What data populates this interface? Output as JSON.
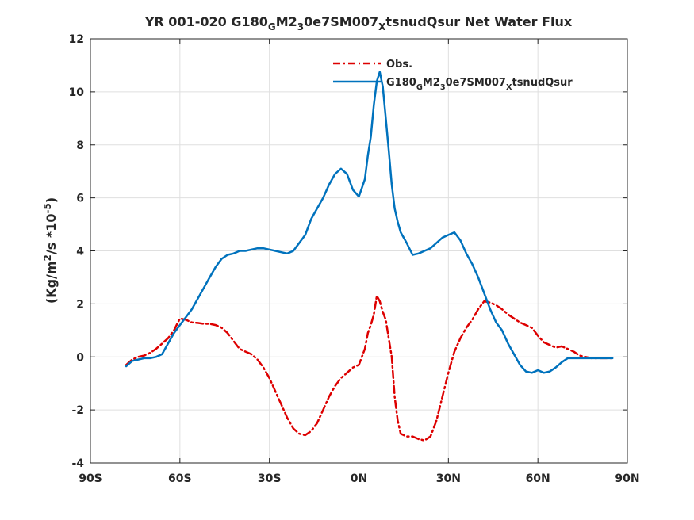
{
  "chart_data": {
    "type": "line",
    "title": {
      "parts": [
        {
          "text": "YR 001-020 G180",
          "sub": false
        },
        {
          "text": "G",
          "sub": true
        },
        {
          "text": "M2",
          "sub": false
        },
        {
          "text": "3",
          "sub": true
        },
        {
          "text": "0e7SM007",
          "sub": false
        },
        {
          "text": "X",
          "sub": true
        },
        {
          "text": "tsnudQsur  Net Water Flux",
          "sub": false
        }
      ]
    },
    "ylabel": {
      "parts": [
        {
          "text": "(Kg/m",
          "sup": false
        },
        {
          "text": "2",
          "sup": true
        },
        {
          "text": "/s *10",
          "sup": false
        },
        {
          "text": "-5",
          "sup": true
        },
        {
          "text": ")",
          "sup": false
        }
      ]
    },
    "xlim": [
      -90,
      90
    ],
    "ylim": [
      -4,
      12
    ],
    "grid": true,
    "legend_position": "top-right",
    "x_ticks": [
      {
        "value": -90,
        "label": "90S"
      },
      {
        "value": -60,
        "label": "60S"
      },
      {
        "value": -30,
        "label": "30S"
      },
      {
        "value": 0,
        "label": "0N"
      },
      {
        "value": 30,
        "label": "30N"
      },
      {
        "value": 60,
        "label": "60N"
      },
      {
        "value": 90,
        "label": "90N"
      }
    ],
    "y_ticks": [
      {
        "value": -4,
        "label": "-4"
      },
      {
        "value": -2,
        "label": "-2"
      },
      {
        "value": 0,
        "label": "0"
      },
      {
        "value": 2,
        "label": "2"
      },
      {
        "value": 4,
        "label": "4"
      },
      {
        "value": 6,
        "label": "6"
      },
      {
        "value": 8,
        "label": "8"
      },
      {
        "value": 10,
        "label": "10"
      },
      {
        "value": 12,
        "label": "12"
      }
    ],
    "series": [
      {
        "name": "Obs.",
        "color": "#dd0000",
        "style": "dashed",
        "x": [
          -78,
          -76,
          -74,
          -72,
          -70,
          -68,
          -66,
          -64,
          -62,
          -60,
          -58,
          -56,
          -54,
          -52,
          -50,
          -48,
          -46,
          -44,
          -42,
          -40,
          -38,
          -36,
          -34,
          -32,
          -30,
          -28,
          -26,
          -24,
          -22,
          -20,
          -18,
          -16,
          -14,
          -12,
          -10,
          -8,
          -6,
          -4,
          -2,
          0,
          2,
          3,
          4,
          5,
          6,
          7,
          8,
          9,
          10,
          11,
          12,
          13,
          14,
          16,
          18,
          20,
          22,
          24,
          26,
          28,
          30,
          32,
          34,
          36,
          38,
          40,
          42,
          44,
          46,
          48,
          50,
          52,
          54,
          56,
          58,
          60,
          62,
          64,
          66,
          68,
          70,
          72,
          74,
          76,
          78,
          80,
          82,
          84,
          85
        ],
        "y": [
          -0.3,
          -0.1,
          0.0,
          0.05,
          0.15,
          0.3,
          0.5,
          0.7,
          1.0,
          1.45,
          1.4,
          1.3,
          1.28,
          1.25,
          1.25,
          1.2,
          1.1,
          0.9,
          0.6,
          0.3,
          0.2,
          0.1,
          -0.1,
          -0.4,
          -0.8,
          -1.3,
          -1.8,
          -2.3,
          -2.7,
          -2.9,
          -2.95,
          -2.8,
          -2.5,
          -2.0,
          -1.5,
          -1.1,
          -0.8,
          -0.6,
          -0.4,
          -0.3,
          0.3,
          0.9,
          1.2,
          1.6,
          2.3,
          2.1,
          1.7,
          1.4,
          0.7,
          0.0,
          -1.5,
          -2.4,
          -2.9,
          -3.0,
          -3.0,
          -3.1,
          -3.15,
          -3.0,
          -2.4,
          -1.5,
          -0.6,
          0.2,
          0.7,
          1.1,
          1.4,
          1.8,
          2.1,
          2.05,
          1.95,
          1.8,
          1.6,
          1.45,
          1.3,
          1.2,
          1.1,
          0.8,
          0.55,
          0.45,
          0.35,
          0.4,
          0.3,
          0.2,
          0.05,
          0.0,
          -0.05,
          -0.05,
          -0.05,
          -0.05,
          -0.05
        ]
      },
      {
        "name": "G180_GM2_30e7SM007_Xtsnudqsur",
        "color": "#0072bd",
        "style": "solid",
        "x": [
          -78,
          -76,
          -74,
          -72,
          -70,
          -68,
          -66,
          -64,
          -62,
          -60,
          -58,
          -56,
          -54,
          -52,
          -50,
          -48,
          -46,
          -44,
          -42,
          -40,
          -38,
          -36,
          -34,
          -32,
          -30,
          -28,
          -26,
          -24,
          -22,
          -20,
          -18,
          -16,
          -14,
          -12,
          -10,
          -8,
          -6,
          -4,
          -2,
          0,
          2,
          3,
          4,
          5,
          6,
          7,
          8,
          9,
          10,
          11,
          12,
          13,
          14,
          16,
          18,
          20,
          22,
          24,
          26,
          28,
          30,
          32,
          34,
          36,
          38,
          40,
          42,
          44,
          46,
          48,
          50,
          52,
          54,
          56,
          58,
          60,
          62,
          64,
          66,
          68,
          70,
          72,
          74,
          76,
          78,
          80,
          82,
          84,
          85
        ],
        "y": [
          -0.35,
          -0.15,
          -0.1,
          -0.05,
          -0.05,
          0.0,
          0.1,
          0.5,
          0.9,
          1.2,
          1.5,
          1.8,
          2.2,
          2.6,
          3.0,
          3.4,
          3.7,
          3.85,
          3.9,
          4.0,
          4.0,
          4.05,
          4.1,
          4.1,
          4.05,
          4.0,
          3.95,
          3.9,
          4.0,
          4.3,
          4.6,
          5.2,
          5.6,
          6.0,
          6.5,
          6.9,
          7.1,
          6.9,
          6.3,
          6.05,
          6.7,
          7.6,
          8.3,
          9.5,
          10.4,
          10.75,
          10.2,
          9.0,
          7.8,
          6.5,
          5.6,
          5.1,
          4.7,
          4.3,
          3.85,
          3.9,
          4.0,
          4.1,
          4.3,
          4.5,
          4.6,
          4.7,
          4.4,
          3.9,
          3.5,
          3.0,
          2.4,
          1.8,
          1.3,
          1.0,
          0.5,
          0.1,
          -0.3,
          -0.55,
          -0.6,
          -0.5,
          -0.6,
          -0.55,
          -0.4,
          -0.2,
          -0.05,
          -0.05,
          -0.05,
          -0.05,
          -0.05,
          -0.05,
          -0.05,
          -0.05,
          -0.05
        ]
      }
    ],
    "legend_entries": [
      {
        "parts": [
          {
            "text": "Obs.",
            "sub": false
          }
        ]
      },
      {
        "parts": [
          {
            "text": "G180",
            "sub": false
          },
          {
            "text": "G",
            "sub": true
          },
          {
            "text": "M2",
            "sub": false
          },
          {
            "text": "3",
            "sub": true
          },
          {
            "text": "0e7SM007",
            "sub": false
          },
          {
            "text": "X",
            "sub": true
          },
          {
            "text": "tsnudQsur",
            "sub": false
          }
        ]
      }
    ]
  }
}
